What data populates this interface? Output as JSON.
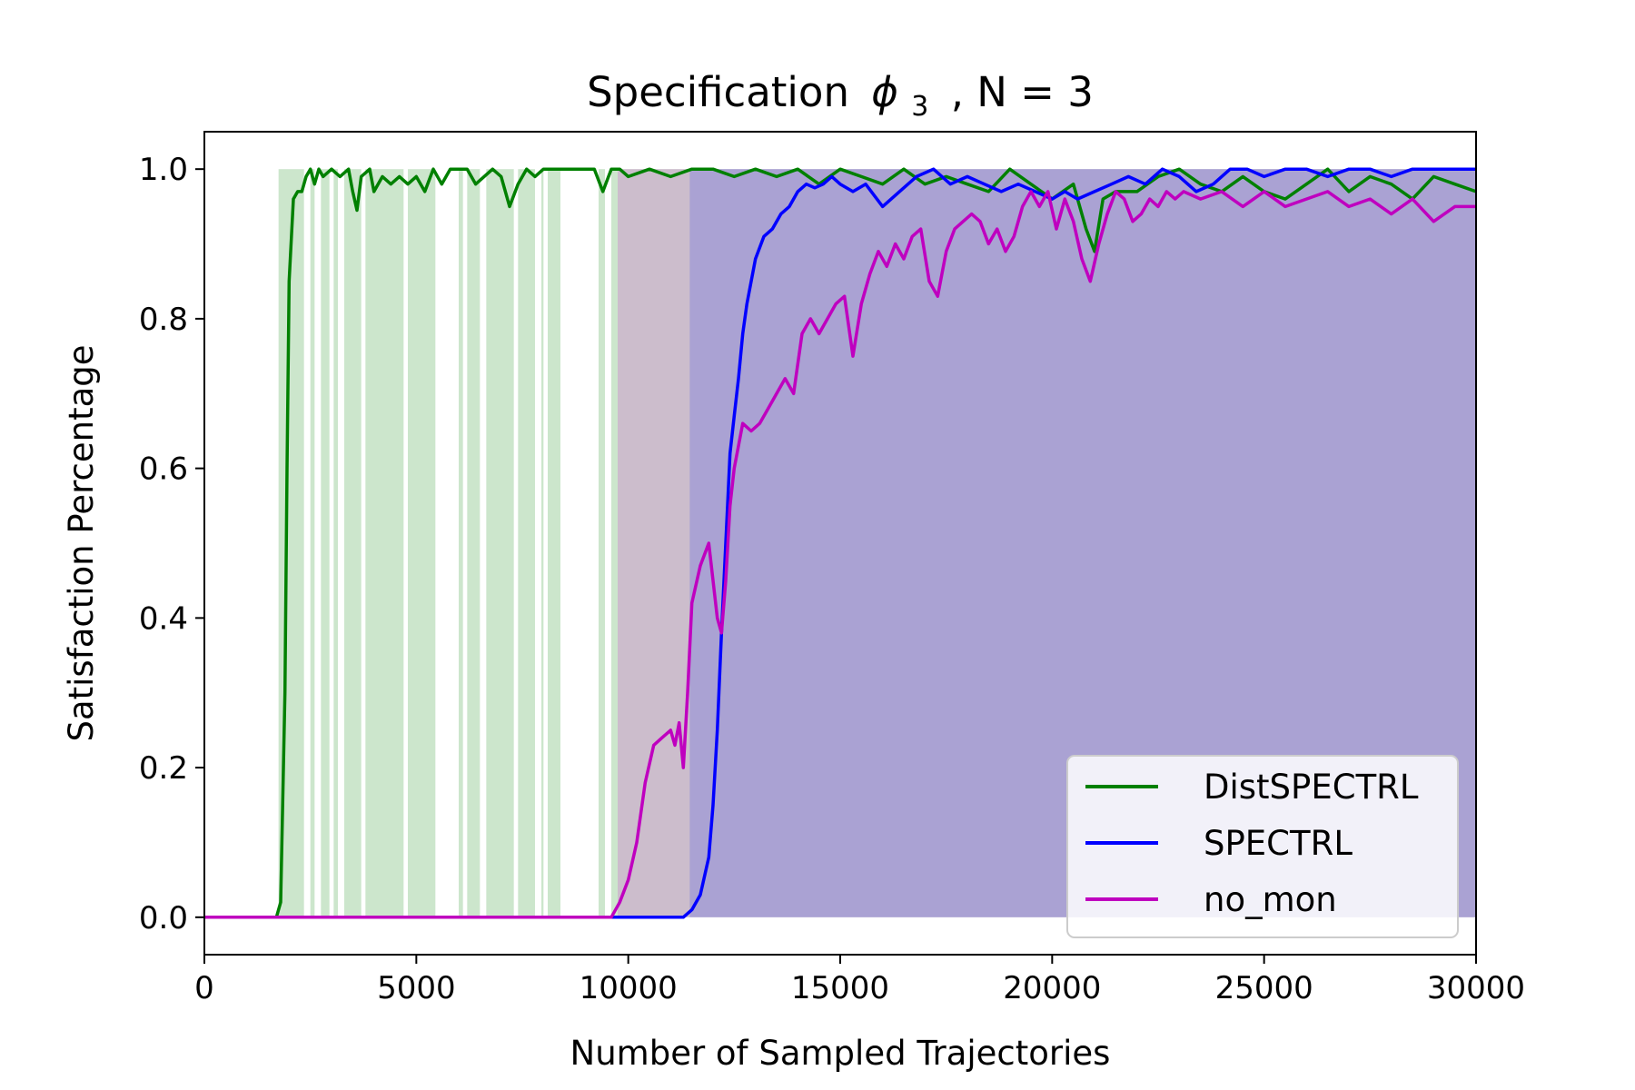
{
  "chart_data": {
    "type": "line",
    "title": "Specification",
    "title_math": "ϕ",
    "title_sub": "3",
    "title_suffix": ", N = 3",
    "xlabel": "Number of Sampled Trajectories",
    "ylabel": "Satisfaction Percentage",
    "xlim": [
      0,
      30000
    ],
    "ylim": [
      -0.05,
      1.05
    ],
    "xticks": [
      0,
      5000,
      10000,
      15000,
      20000,
      25000,
      30000
    ],
    "xtick_labels": [
      "0",
      "5000",
      "10000",
      "15000",
      "20000",
      "25000",
      "30000"
    ],
    "yticks": [
      0.0,
      0.2,
      0.4,
      0.6,
      0.8,
      1.0
    ],
    "ytick_labels": [
      "0.0",
      "0.2",
      "0.4",
      "0.6",
      "0.8",
      "1.0"
    ],
    "grid": false,
    "legend_position": "lower-right",
    "series": [
      {
        "name": "DistSPECTRL",
        "color": "#008000",
        "x": [
          0,
          1700,
          1800,
          1900,
          1950,
          2000,
          2100,
          2200,
          2300,
          2400,
          2500,
          2600,
          2700,
          2800,
          3000,
          3200,
          3400,
          3500,
          3600,
          3700,
          3900,
          4000,
          4200,
          4400,
          4600,
          4800,
          5000,
          5200,
          5400,
          5600,
          5800,
          6000,
          6200,
          6400,
          6600,
          6800,
          7000,
          7200,
          7400,
          7600,
          7800,
          8000,
          8200,
          8400,
          8600,
          8800,
          9000,
          9200,
          9400,
          9600,
          9800,
          10000,
          10500,
          11000,
          11500,
          12000,
          12500,
          13000,
          13500,
          14000,
          14500,
          15000,
          15500,
          16000,
          16500,
          17000,
          17500,
          18000,
          18500,
          19000,
          19500,
          20000,
          20500,
          20800,
          21000,
          21200,
          21500,
          22000,
          22500,
          23000,
          23500,
          24000,
          24500,
          25000,
          25500,
          26000,
          26500,
          27000,
          27500,
          28000,
          28500,
          29000,
          29500,
          30000
        ],
        "y": [
          0.0,
          0.0,
          0.02,
          0.3,
          0.6,
          0.85,
          0.96,
          0.97,
          0.97,
          0.99,
          1.0,
          0.98,
          1.0,
          0.99,
          1.0,
          0.99,
          1.0,
          0.97,
          0.945,
          0.99,
          1.0,
          0.97,
          0.99,
          0.98,
          0.99,
          0.98,
          0.99,
          0.97,
          1.0,
          0.98,
          1.0,
          1.0,
          1.0,
          0.98,
          0.99,
          1.0,
          0.99,
          0.95,
          0.98,
          1.0,
          0.99,
          1.0,
          1.0,
          1.0,
          1.0,
          1.0,
          1.0,
          1.0,
          0.97,
          1.0,
          1.0,
          0.99,
          1.0,
          0.99,
          1.0,
          1.0,
          0.99,
          1.0,
          0.99,
          1.0,
          0.98,
          1.0,
          0.99,
          0.98,
          1.0,
          0.98,
          0.99,
          0.98,
          0.97,
          1.0,
          0.98,
          0.96,
          0.98,
          0.92,
          0.89,
          0.96,
          0.97,
          0.97,
          0.99,
          1.0,
          0.98,
          0.97,
          0.99,
          0.97,
          0.96,
          0.98,
          1.0,
          0.97,
          0.99,
          0.98,
          0.96,
          0.99,
          0.98,
          0.97
        ]
      },
      {
        "name": "SPECTRL",
        "color": "#0000ff",
        "x": [
          0,
          11000,
          11300,
          11500,
          11700,
          11900,
          12000,
          12100,
          12200,
          12300,
          12400,
          12500,
          12600,
          12700,
          12800,
          12900,
          13000,
          13200,
          13400,
          13600,
          13800,
          14000,
          14200,
          14400,
          14600,
          14800,
          15000,
          15300,
          15600,
          16000,
          16400,
          16800,
          17200,
          17600,
          18000,
          18400,
          18800,
          19200,
          19600,
          20000,
          20300,
          20600,
          21000,
          21400,
          21800,
          22200,
          22600,
          23000,
          23400,
          23800,
          24200,
          24600,
          25000,
          25500,
          26000,
          26500,
          27000,
          27500,
          28000,
          28500,
          29000,
          29500,
          30000
        ],
        "y": [
          0.0,
          0.0,
          0.0,
          0.01,
          0.03,
          0.08,
          0.15,
          0.25,
          0.38,
          0.5,
          0.62,
          0.67,
          0.72,
          0.78,
          0.82,
          0.85,
          0.88,
          0.91,
          0.92,
          0.94,
          0.95,
          0.97,
          0.98,
          0.975,
          0.98,
          0.99,
          0.98,
          0.97,
          0.98,
          0.95,
          0.97,
          0.99,
          1.0,
          0.98,
          0.99,
          0.98,
          0.97,
          0.98,
          0.97,
          0.96,
          0.97,
          0.96,
          0.97,
          0.98,
          0.99,
          0.98,
          1.0,
          0.99,
          0.97,
          0.98,
          1.0,
          1.0,
          0.99,
          1.0,
          1.0,
          0.99,
          1.0,
          1.0,
          0.99,
          1.0,
          1.0,
          1.0,
          1.0
        ]
      },
      {
        "name": "no_mon",
        "color": "#bf00bf",
        "x": [
          0,
          9600,
          9800,
          10000,
          10200,
          10400,
          10600,
          10800,
          11000,
          11100,
          11200,
          11300,
          11400,
          11500,
          11700,
          11900,
          12000,
          12100,
          12200,
          12300,
          12400,
          12500,
          12600,
          12700,
          12900,
          13100,
          13300,
          13500,
          13700,
          13900,
          14100,
          14300,
          14500,
          14700,
          14900,
          15100,
          15300,
          15500,
          15700,
          15900,
          16100,
          16300,
          16500,
          16700,
          16900,
          17100,
          17300,
          17500,
          17700,
          17900,
          18100,
          18300,
          18500,
          18700,
          18900,
          19100,
          19300,
          19500,
          19700,
          19900,
          20100,
          20300,
          20500,
          20700,
          20900,
          21100,
          21300,
          21500,
          21700,
          21900,
          22100,
          22300,
          22500,
          22700,
          22900,
          23100,
          23500,
          24000,
          24500,
          25000,
          25500,
          26000,
          26500,
          27000,
          27500,
          28000,
          28500,
          29000,
          29500,
          30000
        ],
        "y": [
          0.0,
          0.0,
          0.02,
          0.05,
          0.1,
          0.18,
          0.23,
          0.24,
          0.25,
          0.23,
          0.26,
          0.2,
          0.3,
          0.42,
          0.47,
          0.5,
          0.45,
          0.4,
          0.38,
          0.45,
          0.55,
          0.6,
          0.63,
          0.66,
          0.65,
          0.66,
          0.68,
          0.7,
          0.72,
          0.7,
          0.78,
          0.8,
          0.78,
          0.8,
          0.82,
          0.83,
          0.75,
          0.82,
          0.86,
          0.89,
          0.87,
          0.9,
          0.88,
          0.91,
          0.92,
          0.85,
          0.83,
          0.89,
          0.92,
          0.93,
          0.94,
          0.93,
          0.9,
          0.92,
          0.89,
          0.91,
          0.95,
          0.97,
          0.95,
          0.97,
          0.92,
          0.96,
          0.93,
          0.88,
          0.85,
          0.9,
          0.94,
          0.97,
          0.96,
          0.93,
          0.94,
          0.96,
          0.95,
          0.97,
          0.96,
          0.97,
          0.96,
          0.97,
          0.95,
          0.97,
          0.95,
          0.96,
          0.97,
          0.95,
          0.96,
          0.94,
          0.96,
          0.93,
          0.95,
          0.95
        ]
      }
    ]
  },
  "legend_entries": [
    "DistSPECTRL",
    "SPECTRL",
    "no_mon"
  ],
  "shading": {
    "DistSPECTRL": {
      "color": "#008000",
      "opacity": 0.2,
      "ranges": [
        [
          1750,
          2350
        ],
        [
          2500,
          2600
        ],
        [
          2750,
          2950
        ],
        [
          3050,
          3150
        ],
        [
          3300,
          3700
        ],
        [
          3800,
          4700
        ],
        [
          4800,
          5450
        ],
        [
          6000,
          6100
        ],
        [
          6200,
          6500
        ],
        [
          6650,
          7300
        ],
        [
          7400,
          7800
        ],
        [
          7950,
          8000
        ],
        [
          8100,
          8400
        ],
        [
          9300,
          9450
        ],
        [
          9600,
          30000
        ]
      ]
    },
    "no_mon": {
      "color": "#cc44cc",
      "opacity": 0.25,
      "ranges": [
        [
          9750,
          30000
        ]
      ]
    },
    "SPECTRL": {
      "color": "#3344ee",
      "opacity": 0.22,
      "ranges": [
        [
          11450,
          30000
        ]
      ]
    }
  }
}
